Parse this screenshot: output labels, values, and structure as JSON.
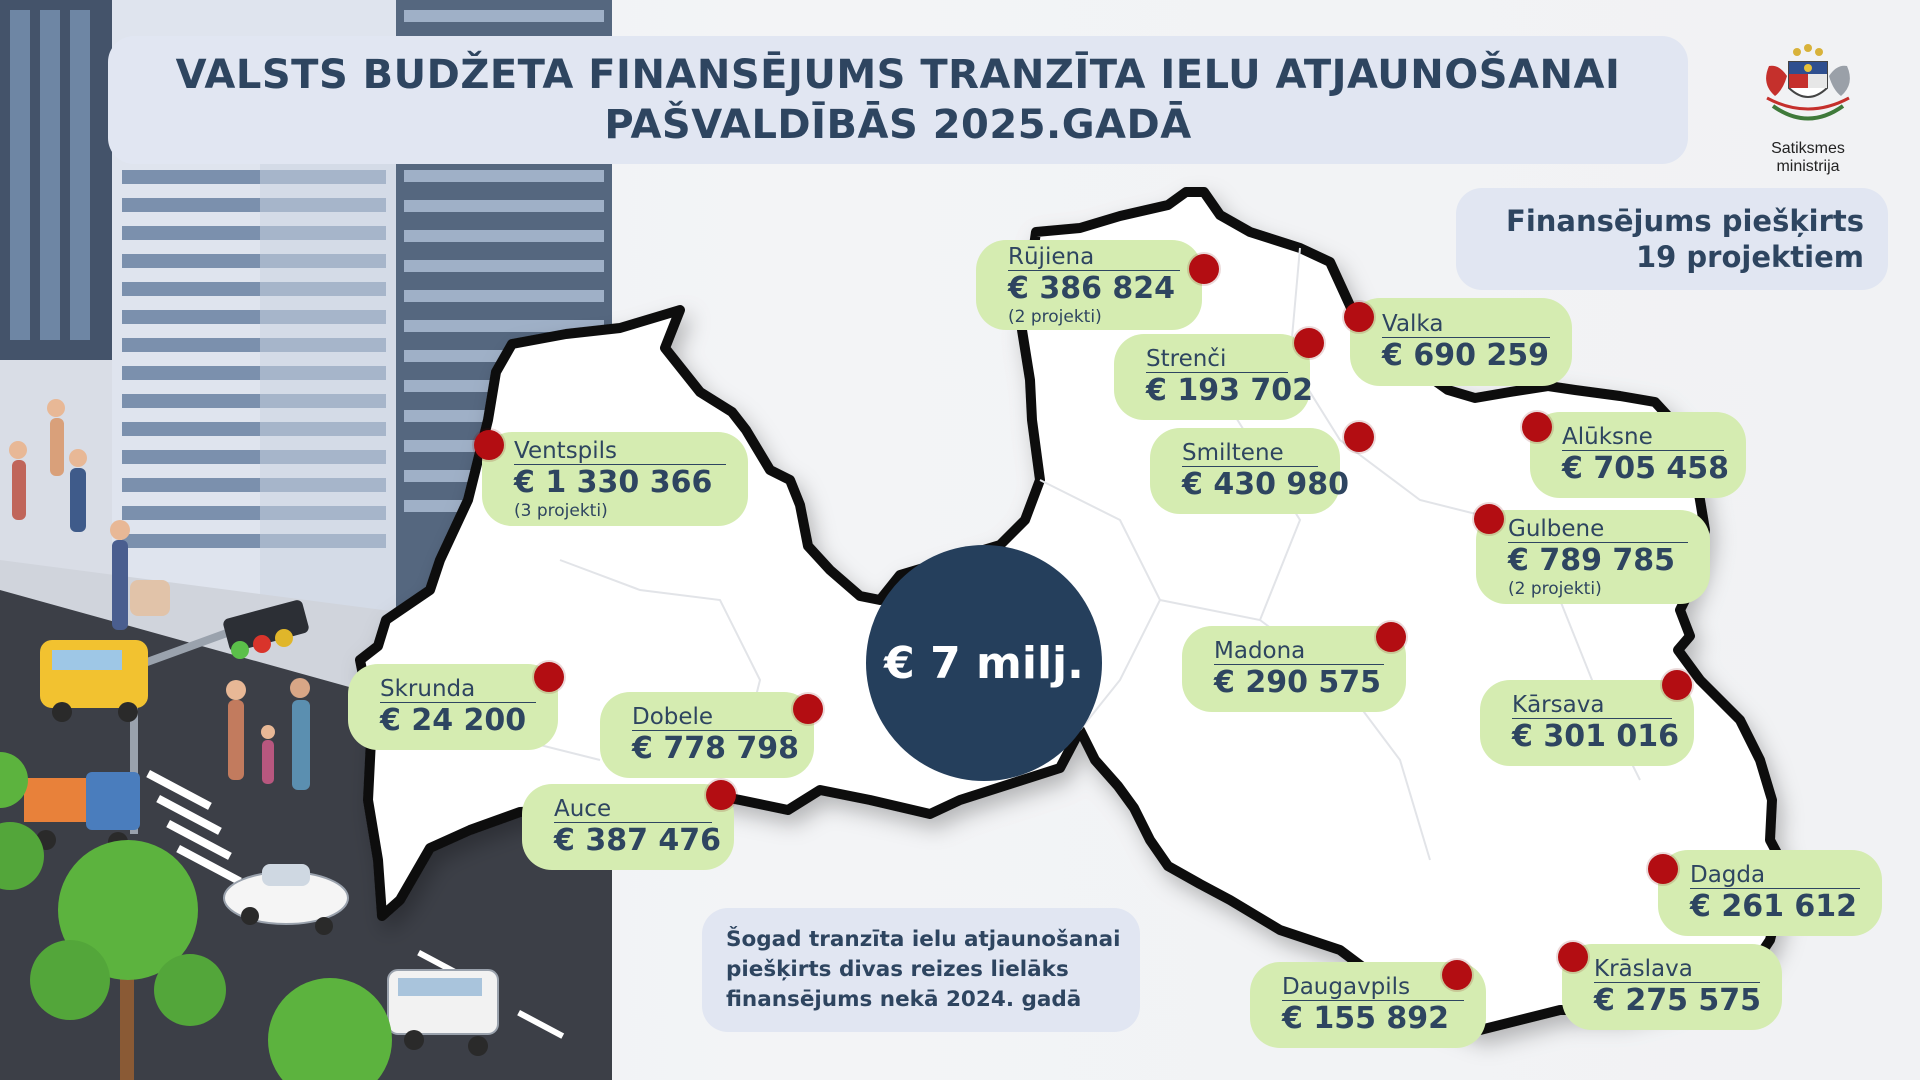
{
  "title": {
    "line1": "VALSTS BUDŽETA FINANSĒJUMS TRANZĪTA IELU ATJAUNOŠANAI",
    "line2": "PAŠVALDĪBĀS 2025.GADĀ"
  },
  "logo": {
    "organization": "Satiksmes ministrija",
    "icon": "latvia-coat-of-arms-icon"
  },
  "funded": {
    "line1": "Finansējums piešķirts",
    "line2": "19 projektiem"
  },
  "total": "€ 7 milj.",
  "footnote": {
    "line1": "Šogad tranzīta ielu atjaunošanai",
    "line2": "piešķirts divas reizes lielāks",
    "line3": "finansējums nekā 2024. gadā"
  },
  "colors": {
    "label_bg": "#d5ecb1",
    "marker": "#b30d12",
    "total_circle": "#253f5c",
    "text": "#2e4560",
    "info_box": "#e1e6f2"
  },
  "municipalities": [
    {
      "name": "Rūjiena",
      "amount": "€ 386 824",
      "note": "(2 projekti)"
    },
    {
      "name": "Valka",
      "amount": "€ 690 259"
    },
    {
      "name": "Strenči",
      "amount": "€ 193 702"
    },
    {
      "name": "Smiltene",
      "amount": "€ 430 980"
    },
    {
      "name": "Alūksne",
      "amount": "€ 705 458"
    },
    {
      "name": "Ventspils",
      "amount": "€ 1 330 366",
      "note": "(3 projekti)"
    },
    {
      "name": "Gulbene",
      "amount": "€ 789 785",
      "note": "(2 projekti)"
    },
    {
      "name": "Skrunda",
      "amount": "€ 24 200"
    },
    {
      "name": "Dobele",
      "amount": "€ 778 798"
    },
    {
      "name": "Madona",
      "amount": "€ 290 575"
    },
    {
      "name": "Kārsava",
      "amount": "€ 301 016"
    },
    {
      "name": "Auce",
      "amount": "€ 387 476"
    },
    {
      "name": "Dagda",
      "amount": "€ 261 612"
    },
    {
      "name": "Daugavpils",
      "amount": "€ 155 892"
    },
    {
      "name": "Krāslava",
      "amount": "€ 275 575"
    }
  ]
}
